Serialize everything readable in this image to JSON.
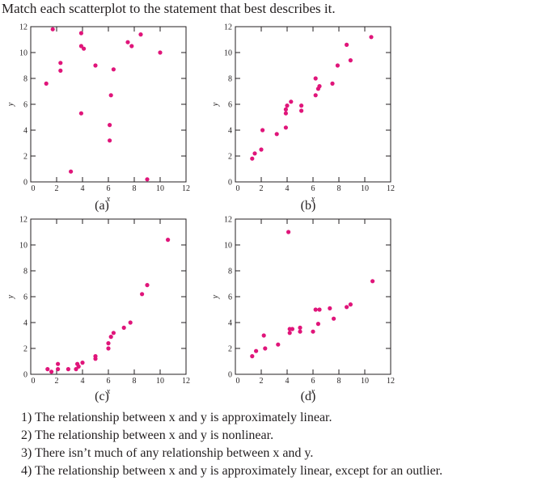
{
  "question": "Match each scatterplot to the statement that best describes it.",
  "statements": [
    "1) The relationship between x and y is approximately linear.",
    "2) The relationship between x and y is nonlinear.",
    "3) There isn’t much of any relationship between x and y.",
    "4) The relationship between x and y is approximately linear, except for an outlier."
  ],
  "colors": {
    "point": "#e0157a",
    "axis": "#231f20"
  },
  "chart_data": [
    {
      "type": "scatter",
      "label": "(a)",
      "xlabel": "x",
      "ylabel": "y",
      "xlim": [
        0,
        12
      ],
      "ylim": [
        0,
        12
      ],
      "xticks": [
        "0",
        "2",
        "4",
        "6",
        "8",
        "10",
        "12"
      ],
      "yticks": [
        "0",
        "2",
        "4",
        "6",
        "8",
        "10",
        "12"
      ],
      "points": [
        [
          1.2,
          7.6
        ],
        [
          1.7,
          11.8
        ],
        [
          2.3,
          9.2
        ],
        [
          2.3,
          8.6
        ],
        [
          3.1,
          0.8
        ],
        [
          3.9,
          11.5
        ],
        [
          3.9,
          10.5
        ],
        [
          4.1,
          10.3
        ],
        [
          3.9,
          5.3
        ],
        [
          5.0,
          9.0
        ],
        [
          6.2,
          6.7
        ],
        [
          6.1,
          4.4
        ],
        [
          6.1,
          3.2
        ],
        [
          6.4,
          8.7
        ],
        [
          7.5,
          10.8
        ],
        [
          7.8,
          10.5
        ],
        [
          8.5,
          11.4
        ],
        [
          9.0,
          0.2
        ],
        [
          10.0,
          10.0
        ]
      ]
    },
    {
      "type": "scatter",
      "label": "(b)",
      "xlabel": "x",
      "ylabel": "y",
      "xlim": [
        0,
        12
      ],
      "ylim": [
        0,
        12
      ],
      "xticks": [
        "0",
        "2",
        "4",
        "6",
        "8",
        "10",
        "12"
      ],
      "yticks": [
        "0",
        "2",
        "4",
        "6",
        "8",
        "10",
        "12"
      ],
      "points": [
        [
          1.3,
          1.8
        ],
        [
          1.5,
          2.2
        ],
        [
          2.0,
          2.5
        ],
        [
          2.1,
          4.0
        ],
        [
          3.2,
          3.7
        ],
        [
          3.9,
          4.2
        ],
        [
          3.9,
          5.3
        ],
        [
          3.9,
          5.6
        ],
        [
          4.0,
          5.9
        ],
        [
          4.3,
          6.2
        ],
        [
          5.1,
          5.9
        ],
        [
          5.1,
          5.5
        ],
        [
          6.2,
          8.0
        ],
        [
          6.2,
          6.7
        ],
        [
          6.4,
          7.2
        ],
        [
          6.5,
          7.4
        ],
        [
          7.5,
          7.6
        ],
        [
          7.9,
          9.0
        ],
        [
          8.6,
          10.6
        ],
        [
          8.9,
          9.4
        ],
        [
          10.5,
          11.2
        ]
      ]
    },
    {
      "type": "scatter",
      "label": "(c)",
      "xlabel": "x",
      "ylabel": "y",
      "xlim": [
        0,
        12
      ],
      "ylim": [
        0,
        12
      ],
      "xticks": [
        "0",
        "2",
        "4",
        "6",
        "8",
        "10",
        "12"
      ],
      "yticks": [
        "0",
        "2",
        "4",
        "6",
        "8",
        "10",
        "12"
      ],
      "points": [
        [
          1.3,
          0.4
        ],
        [
          1.6,
          0.2
        ],
        [
          2.1,
          0.4
        ],
        [
          2.1,
          0.8
        ],
        [
          2.9,
          0.4
        ],
        [
          3.5,
          0.4
        ],
        [
          3.6,
          0.8
        ],
        [
          3.7,
          0.6
        ],
        [
          4.0,
          0.9
        ],
        [
          5.0,
          1.2
        ],
        [
          5.0,
          1.4
        ],
        [
          6.0,
          2.0
        ],
        [
          6.0,
          2.4
        ],
        [
          6.2,
          2.9
        ],
        [
          6.4,
          3.2
        ],
        [
          7.2,
          3.6
        ],
        [
          7.7,
          4.0
        ],
        [
          8.6,
          6.2
        ],
        [
          9.0,
          6.9
        ],
        [
          10.6,
          10.4
        ]
      ]
    },
    {
      "type": "scatter",
      "label": "(d)",
      "xlabel": "x",
      "ylabel": "y",
      "xlim": [
        0,
        12
      ],
      "ylim": [
        0,
        12
      ],
      "xticks": [
        "0",
        "2",
        "4",
        "6",
        "8",
        "10",
        "12"
      ],
      "yticks": [
        "0",
        "2",
        "4",
        "6",
        "8",
        "10",
        "12"
      ],
      "points": [
        [
          1.3,
          1.4
        ],
        [
          1.6,
          1.8
        ],
        [
          2.2,
          3.0
        ],
        [
          2.3,
          2.0
        ],
        [
          3.3,
          2.3
        ],
        [
          4.2,
          3.5
        ],
        [
          4.2,
          3.2
        ],
        [
          4.4,
          3.5
        ],
        [
          5.0,
          3.3
        ],
        [
          5.0,
          3.6
        ],
        [
          6.0,
          3.3
        ],
        [
          6.2,
          5.0
        ],
        [
          6.4,
          3.9
        ],
        [
          6.5,
          5.0
        ],
        [
          7.3,
          5.1
        ],
        [
          7.6,
          4.3
        ],
        [
          8.6,
          5.2
        ],
        [
          8.9,
          5.4
        ],
        [
          4.1,
          11.0
        ],
        [
          10.6,
          7.2
        ]
      ]
    }
  ]
}
